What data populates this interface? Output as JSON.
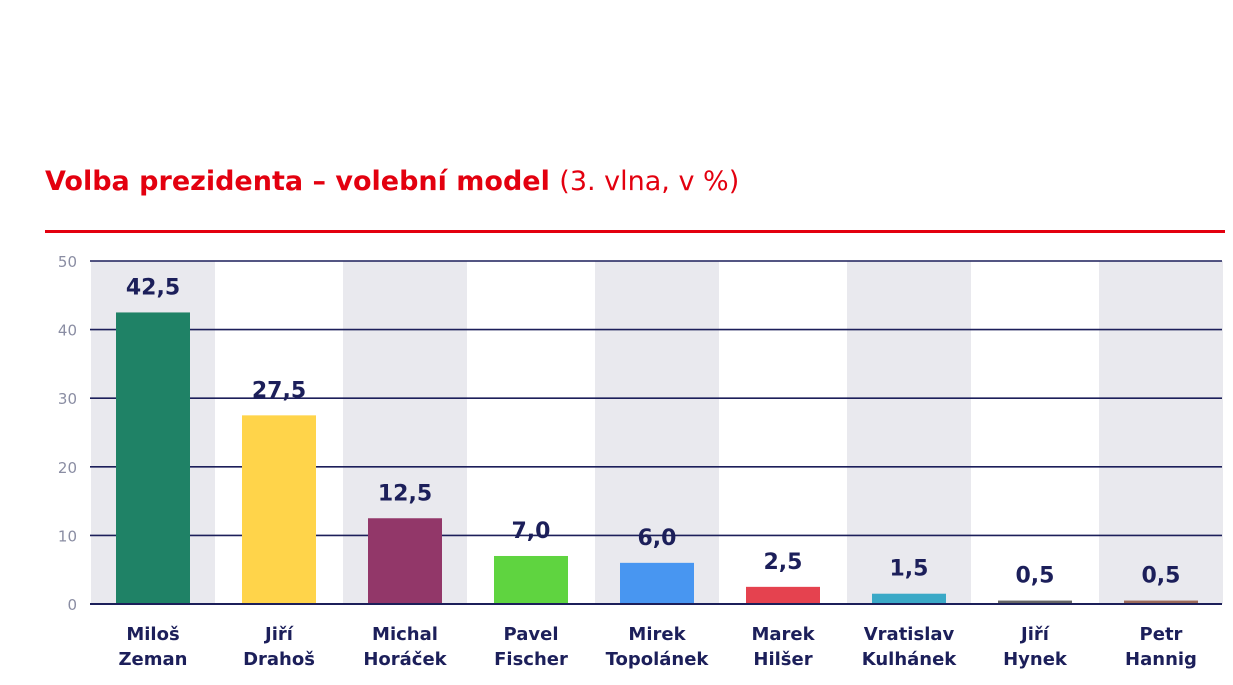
{
  "chart_data": {
    "type": "bar",
    "title": "Volba prezidenta – volební model",
    "subtitle": "(3. vlna, v %)",
    "categories": [
      [
        "Miloš",
        "Zeman"
      ],
      [
        "Jiří",
        "Drahoš"
      ],
      [
        "Michal",
        "Horáček"
      ],
      [
        "Pavel",
        "Fischer"
      ],
      [
        "Mirek",
        "Topolánek"
      ],
      [
        "Marek",
        "Hilšer"
      ],
      [
        "Vratislav",
        "Kulhánek"
      ],
      [
        "Jiří",
        "Hynek"
      ],
      [
        "Petr",
        "Hannig"
      ]
    ],
    "values": [
      42.5,
      27.5,
      12.5,
      7.0,
      6.0,
      2.5,
      1.5,
      0.5,
      0.5
    ],
    "value_labels": [
      "42,5",
      "27,5",
      "12,5",
      "7,0",
      "6,0",
      "2,5",
      "1,5",
      "0,5",
      "0,5"
    ],
    "colors": [
      "#1f8266",
      "#ffd44a",
      "#923769",
      "#5fd440",
      "#4896f1",
      "#e5424f",
      "#3aa9c7",
      "#666666",
      "#9c6b5b"
    ],
    "yticks": [
      "0",
      "10",
      "20",
      "30",
      "40",
      "50"
    ],
    "ylim": [
      0,
      50
    ],
    "xlabel": "",
    "ylabel": "",
    "grid": true,
    "legend": "none"
  }
}
